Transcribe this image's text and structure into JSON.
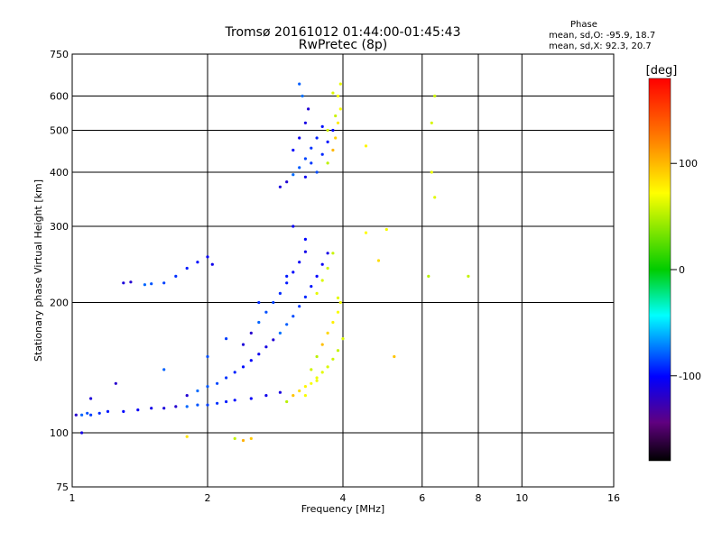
{
  "header": {
    "title": "Tromsø 20161012 01:44:00-01:45:43",
    "subtitle": "RwPretec (8p)",
    "phase_label": "Phase",
    "phase_stats_o": "mean, sd,O: -95.9, 18.7",
    "phase_stats_x": "mean, sd,X:  92.3, 20.7"
  },
  "chart_data": {
    "type": "scatter",
    "xlabel": "Frequency [MHz]",
    "ylabel": "Stationary phase Virtual Height [km]",
    "xscale": "log",
    "yscale": "log",
    "xlim": [
      1,
      16
    ],
    "ylim": [
      75,
      750
    ],
    "x_ticks": [
      "1",
      "2",
      "4",
      "6",
      "8",
      "10",
      "16"
    ],
    "y_ticks": [
      "75",
      "100",
      "200",
      "300",
      "400",
      "500",
      "600",
      "750"
    ],
    "grid": true,
    "colorbar": {
      "label": "[deg]",
      "range": [
        -180,
        180
      ],
      "ticks": [
        "100",
        "0",
        "-100"
      ]
    },
    "series": [
      {
        "mode": "O",
        "phase_mean": -95.9,
        "points": [
          [
            1.02,
            110
          ],
          [
            1.05,
            110
          ],
          [
            1.08,
            111
          ],
          [
            1.1,
            110
          ],
          [
            1.15,
            111
          ],
          [
            1.2,
            112
          ],
          [
            1.3,
            112
          ],
          [
            1.4,
            113
          ],
          [
            1.5,
            114
          ],
          [
            1.6,
            114
          ],
          [
            1.7,
            115
          ],
          [
            1.8,
            115
          ],
          [
            1.9,
            116
          ],
          [
            2.0,
            116
          ],
          [
            2.1,
            117
          ],
          [
            2.2,
            118
          ],
          [
            2.3,
            119
          ],
          [
            2.5,
            120
          ],
          [
            2.7,
            122
          ],
          [
            2.9,
            124
          ],
          [
            1.8,
            122
          ],
          [
            1.9,
            125
          ],
          [
            2.0,
            128
          ],
          [
            2.1,
            130
          ],
          [
            2.2,
            134
          ],
          [
            2.3,
            138
          ],
          [
            2.4,
            142
          ],
          [
            2.5,
            147
          ],
          [
            2.6,
            152
          ],
          [
            2.7,
            158
          ],
          [
            2.8,
            164
          ],
          [
            2.9,
            170
          ],
          [
            3.0,
            178
          ],
          [
            3.1,
            186
          ],
          [
            3.2,
            196
          ],
          [
            3.3,
            206
          ],
          [
            3.4,
            218
          ],
          [
            3.5,
            230
          ],
          [
            3.6,
            245
          ],
          [
            3.7,
            260
          ],
          [
            2.4,
            160
          ],
          [
            2.5,
            170
          ],
          [
            2.6,
            180
          ],
          [
            2.7,
            190
          ],
          [
            2.8,
            200
          ],
          [
            2.9,
            210
          ],
          [
            3.0,
            222
          ],
          [
            3.1,
            235
          ],
          [
            3.2,
            248
          ],
          [
            3.3,
            262
          ],
          [
            1.3,
            222
          ],
          [
            1.35,
            223
          ],
          [
            1.45,
            220
          ],
          [
            1.5,
            221
          ],
          [
            1.6,
            222
          ],
          [
            1.7,
            230
          ],
          [
            1.8,
            240
          ],
          [
            1.9,
            248
          ],
          [
            2.0,
            255
          ],
          [
            2.05,
            245
          ],
          [
            2.9,
            370
          ],
          [
            3.0,
            380
          ],
          [
            3.1,
            395
          ],
          [
            3.2,
            410
          ],
          [
            3.3,
            430
          ],
          [
            3.4,
            455
          ],
          [
            3.5,
            480
          ],
          [
            3.6,
            510
          ],
          [
            3.1,
            450
          ],
          [
            3.2,
            480
          ],
          [
            3.3,
            520
          ],
          [
            3.35,
            560
          ],
          [
            3.25,
            600
          ],
          [
            3.2,
            640
          ],
          [
            3.5,
            400
          ],
          [
            3.4,
            420
          ],
          [
            3.6,
            440
          ],
          [
            3.7,
            470
          ],
          [
            3.8,
            500
          ],
          [
            3.3,
            390
          ],
          [
            1.05,
            100
          ],
          [
            1.1,
            120
          ],
          [
            1.25,
            130
          ],
          [
            1.6,
            140
          ],
          [
            2.0,
            150
          ],
          [
            2.2,
            165
          ],
          [
            2.6,
            200
          ],
          [
            3.0,
            230
          ],
          [
            3.3,
            280
          ],
          [
            3.1,
            300
          ]
        ]
      },
      {
        "mode": "X",
        "phase_mean": 92.3,
        "points": [
          [
            3.0,
            118
          ],
          [
            3.1,
            122
          ],
          [
            3.2,
            125
          ],
          [
            3.3,
            128
          ],
          [
            3.4,
            130
          ],
          [
            3.5,
            134
          ],
          [
            3.6,
            138
          ],
          [
            3.7,
            142
          ],
          [
            3.8,
            148
          ],
          [
            3.9,
            155
          ],
          [
            3.5,
            150
          ],
          [
            3.6,
            160
          ],
          [
            3.7,
            170
          ],
          [
            3.8,
            180
          ],
          [
            3.9,
            190
          ],
          [
            3.95,
            200
          ],
          [
            3.5,
            210
          ],
          [
            3.6,
            225
          ],
          [
            3.7,
            240
          ],
          [
            3.8,
            260
          ],
          [
            3.7,
            420
          ],
          [
            3.8,
            450
          ],
          [
            3.85,
            480
          ],
          [
            3.9,
            520
          ],
          [
            3.95,
            560
          ],
          [
            3.9,
            600
          ],
          [
            3.95,
            640
          ],
          [
            3.8,
            610
          ],
          [
            3.7,
            500
          ],
          [
            3.85,
            540
          ],
          [
            2.3,
            97
          ],
          [
            2.4,
            96
          ],
          [
            2.5,
            97
          ],
          [
            1.8,
            98
          ],
          [
            4.5,
            290
          ],
          [
            5.0,
            295
          ],
          [
            6.3,
            400
          ],
          [
            6.4,
            350
          ],
          [
            6.3,
            520
          ],
          [
            6.4,
            600
          ],
          [
            7.6,
            230
          ],
          [
            6.2,
            230
          ],
          [
            5.2,
            150
          ],
          [
            4.8,
            250
          ],
          [
            4.5,
            460
          ],
          [
            3.3,
            122
          ],
          [
            3.5,
            132
          ],
          [
            3.9,
            205
          ],
          [
            4.0,
            165
          ],
          [
            3.4,
            140
          ]
        ]
      }
    ]
  }
}
